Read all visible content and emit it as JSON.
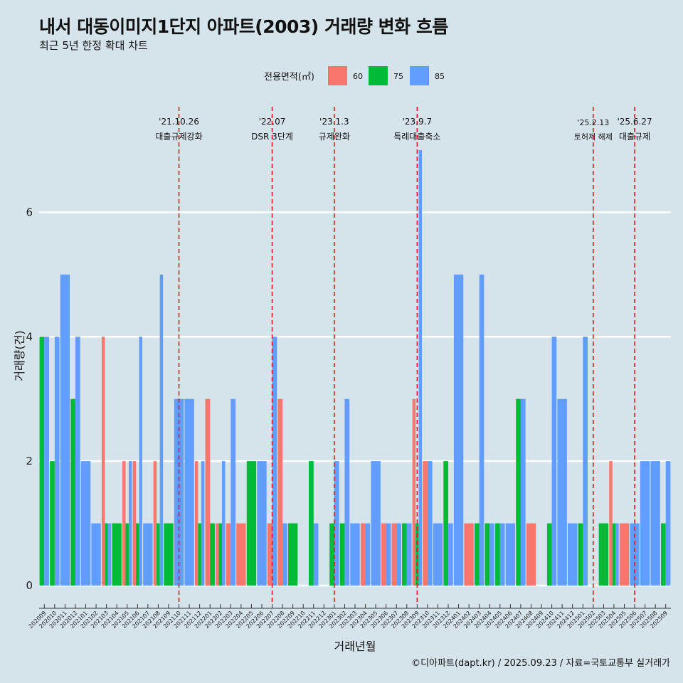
{
  "title": "내서 대동이미지1단지 아파트(2003) 거래량 변화 흐름",
  "subtitle": "최근 5년 한정 확대 차트",
  "caption": "©디아파트(dapt.kr) / 2025.09.23 / 자료=국토교통부 실거래가",
  "colors": {
    "background": "#d5e4ea",
    "s60": "#f8766d",
    "s75": "#00ba38",
    "s85": "#619cff",
    "grid": "#ffffff",
    "event_line": "#e41a1c"
  },
  "chart_data": {
    "type": "bar",
    "xlabel": "거래년월",
    "ylabel": "거래량(건)",
    "ylim": [
      0,
      7
    ],
    "yticks": [
      0,
      2,
      4,
      6
    ],
    "legend": {
      "title": "전용면적(㎡)",
      "position": "top",
      "entries": [
        "60",
        "75",
        "85"
      ]
    },
    "categories": [
      "202009",
      "202010",
      "202011",
      "202012",
      "202101",
      "202102",
      "202103",
      "202104",
      "202105",
      "202106",
      "202107",
      "202108",
      "202109",
      "202110",
      "202111",
      "202112",
      "202201",
      "202202",
      "202203",
      "202204",
      "202205",
      "202206",
      "202207",
      "202208",
      "202209",
      "202210",
      "202211",
      "202212",
      "202301",
      "202302",
      "202303",
      "202304",
      "202305",
      "202306",
      "202307",
      "202308",
      "202309",
      "202310",
      "202311",
      "202312",
      "202401",
      "202402",
      "202403",
      "202404",
      "202405",
      "202406",
      "202407",
      "202408",
      "202409",
      "202410",
      "202411",
      "202412",
      "202501",
      "202502",
      "202503",
      "202504",
      "202505",
      "202506",
      "202507",
      "202508",
      "202509"
    ],
    "series": [
      {
        "name": "60",
        "values": [
          0,
          0,
          0,
          0,
          0,
          0,
          4,
          0,
          2,
          2,
          0,
          2,
          0,
          0,
          0,
          2,
          3,
          1,
          1,
          1,
          0,
          0,
          1,
          3,
          0,
          0,
          0,
          0,
          0,
          0,
          0,
          1,
          0,
          1,
          1,
          0,
          3,
          2,
          0,
          0,
          0,
          1,
          0,
          0,
          0,
          0,
          0,
          1,
          0,
          0,
          0,
          0,
          0,
          0,
          0,
          2,
          1,
          0,
          0,
          0,
          0
        ]
      },
      {
        "name": "75",
        "values": [
          4,
          2,
          0,
          3,
          0,
          0,
          1,
          1,
          1,
          1,
          0,
          1,
          1,
          0,
          0,
          1,
          1,
          1,
          0,
          0,
          2,
          0,
          0,
          0,
          1,
          0,
          2,
          0,
          1,
          1,
          0,
          0,
          0,
          0,
          0,
          1,
          1,
          0,
          0,
          2,
          0,
          0,
          1,
          1,
          1,
          0,
          3,
          0,
          0,
          1,
          0,
          0,
          1,
          0,
          1,
          1,
          0,
          0,
          0,
          0,
          1
        ]
      },
      {
        "name": "85",
        "values": [
          4,
          4,
          5,
          4,
          2,
          1,
          1,
          0,
          2,
          4,
          1,
          5,
          0,
          3,
          3,
          2,
          0,
          2,
          3,
          0,
          0,
          2,
          4,
          1,
          0,
          0,
          1,
          0,
          2,
          3,
          1,
          1,
          2,
          1,
          1,
          1,
          7,
          2,
          1,
          1,
          5,
          0,
          5,
          1,
          1,
          1,
          3,
          0,
          0,
          4,
          3,
          1,
          4,
          0,
          0,
          1,
          0,
          1,
          2,
          2,
          2
        ]
      }
    ],
    "events": [
      {
        "x": "202110",
        "date": "'21.10.26",
        "label": "대출규제강화"
      },
      {
        "x": "202207",
        "date": "'22.07",
        "label": "DSR 3단계"
      },
      {
        "x": "202301",
        "date": "'23.1.3",
        "label": "규제완화"
      },
      {
        "x": "202309",
        "date": "'23.9.7",
        "label": "특례대출축소"
      },
      {
        "x": "202502",
        "date": "'25.2.13",
        "label": "토허제 해제"
      },
      {
        "x": "202506",
        "date": "'25.6.27",
        "label": "대출규제"
      }
    ]
  }
}
